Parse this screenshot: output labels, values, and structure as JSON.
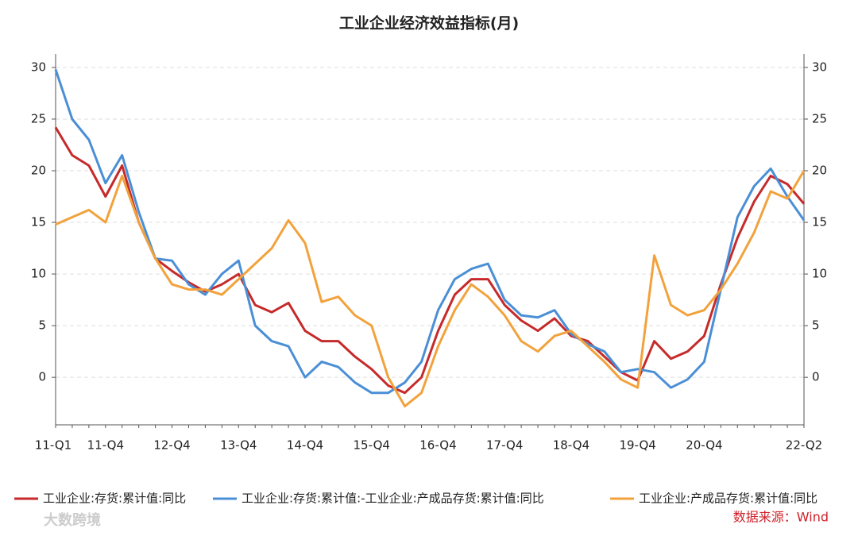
{
  "chart_data": {
    "type": "line",
    "title": "工业企业经济效益指标(月)",
    "categories": [
      "11-Q1",
      null,
      null,
      "11-Q4",
      null,
      null,
      null,
      "12-Q4",
      null,
      null,
      null,
      "13-Q4",
      null,
      null,
      null,
      "14-Q4",
      null,
      null,
      null,
      "15-Q4",
      null,
      null,
      null,
      "16-Q4",
      null,
      null,
      null,
      "17-Q4",
      null,
      null,
      null,
      "18-Q4",
      null,
      null,
      null,
      "19-Q4",
      null,
      null,
      null,
      "20-Q4",
      null,
      null,
      null,
      null,
      null,
      "22-Q2"
    ],
    "series": [
      {
        "name": "工业企业:存货:累计值:同比",
        "color": "#c62a2a",
        "values": [
          24.2,
          21.5,
          20.5,
          17.5,
          20.5,
          15,
          11.5,
          10.3,
          9.2,
          8.3,
          9,
          10,
          7,
          6.3,
          7.2,
          4.5,
          3.5,
          3.5,
          2,
          0.8,
          -0.8,
          -1.5,
          0,
          4.5,
          8,
          9.5,
          9.5,
          7,
          5.5,
          4.5,
          5.7,
          4,
          3.5,
          2,
          0.5,
          -0.3,
          3.5,
          1.8,
          2.5,
          4,
          9,
          13.5,
          17,
          19.5,
          18.7,
          16.8
        ]
      },
      {
        "name": "工业企业:存货:累计值:-工业企业:产成品存货:累计值:同比",
        "color": "#4a8fd6",
        "values": [
          29.8,
          25,
          23,
          18.8,
          21.5,
          16,
          11.5,
          11.3,
          9,
          8,
          10,
          11.3,
          5,
          3.5,
          3,
          0,
          1.5,
          1,
          -0.5,
          -1.5,
          -1.5,
          -0.5,
          1.5,
          6.5,
          9.5,
          10.5,
          11,
          7.5,
          6,
          5.8,
          6.5,
          4.2,
          3.2,
          2.5,
          0.5,
          0.8,
          0.5,
          -1,
          -0.2,
          1.5,
          8.5,
          15.5,
          18.5,
          20.2,
          17.5,
          15.2
        ]
      },
      {
        "name": "工业企业:产成品存货:累计值:同比",
        "color": "#f2a23c",
        "values": [
          14.8,
          15.5,
          16.2,
          15,
          19.5,
          15,
          11.5,
          9,
          8.5,
          8.5,
          8,
          9.5,
          11,
          12.5,
          15.2,
          13,
          7.3,
          7.8,
          6,
          5,
          0,
          -2.8,
          -1.5,
          3,
          6.5,
          9,
          7.8,
          6,
          3.5,
          2.5,
          4,
          4.5,
          3,
          1.5,
          -0.2,
          -1,
          11.8,
          7,
          6,
          6.5,
          8.5,
          11,
          14,
          18,
          17.3,
          20
        ]
      }
    ],
    "ylim": [
      -4.6,
      31.3
    ],
    "yticks": [
      0,
      5,
      10,
      15,
      20,
      25,
      30
    ],
    "grid": true,
    "source": "数据来源：Wind",
    "watermark": "大数跨境"
  }
}
